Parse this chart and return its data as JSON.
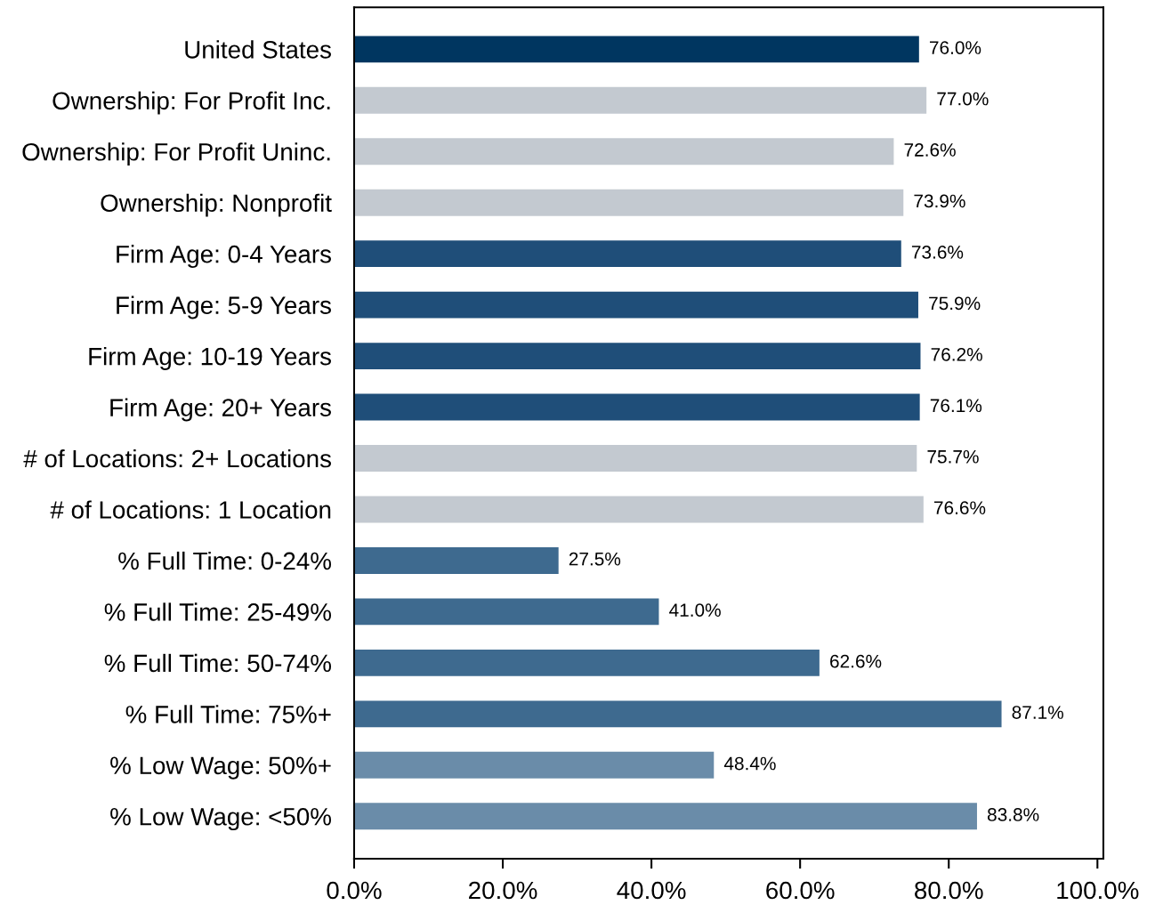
{
  "chart_data": {
    "type": "bar",
    "orientation": "horizontal",
    "categories": [
      "United States",
      "Ownership: For Profit Inc.",
      "Ownership: For Profit Uninc.",
      "Ownership: Nonprofit",
      "Firm Age: 0-4 Years",
      "Firm Age: 5-9 Years",
      "Firm Age: 10-19 Years",
      "Firm Age: 20+ Years",
      "# of Locations: 2+ Locations",
      "# of Locations: 1 Location",
      "% Full Time: 0-24%",
      "% Full Time: 25-49%",
      "% Full Time: 50-74%",
      "% Full Time: 75%+",
      "% Low Wage: 50%+",
      "% Low Wage: <50%"
    ],
    "values": [
      76.0,
      77.0,
      72.6,
      73.9,
      73.6,
      75.9,
      76.2,
      76.1,
      75.7,
      76.6,
      27.5,
      41.0,
      62.6,
      87.1,
      48.4,
      83.8
    ],
    "colors": [
      "#003660",
      "#c3c9d0",
      "#c3c9d0",
      "#c3c9d0",
      "#1f4e79",
      "#1f4e79",
      "#1f4e79",
      "#1f4e79",
      "#c3c9d0",
      "#c3c9d0",
      "#3e6a8f",
      "#3e6a8f",
      "#3e6a8f",
      "#3e6a8f",
      "#6a8ca9",
      "#6a8ca9"
    ],
    "value_labels": [
      "76.0%",
      "77.0%",
      "72.6%",
      "73.9%",
      "73.6%",
      "75.9%",
      "76.2%",
      "76.1%",
      "75.7%",
      "76.6%",
      "27.5%",
      "41.0%",
      "62.6%",
      "87.1%",
      "48.4%",
      "83.8%"
    ],
    "xlim": [
      0,
      100.8
    ],
    "xticks": [
      {
        "value": 0,
        "label": "0.0%"
      },
      {
        "value": 20,
        "label": "20.0%"
      },
      {
        "value": 40,
        "label": "40.0%"
      },
      {
        "value": 60,
        "label": "60.0%"
      },
      {
        "value": 80,
        "label": "80.0%"
      },
      {
        "value": 100,
        "label": "100.0%"
      }
    ],
    "grid": false
  }
}
